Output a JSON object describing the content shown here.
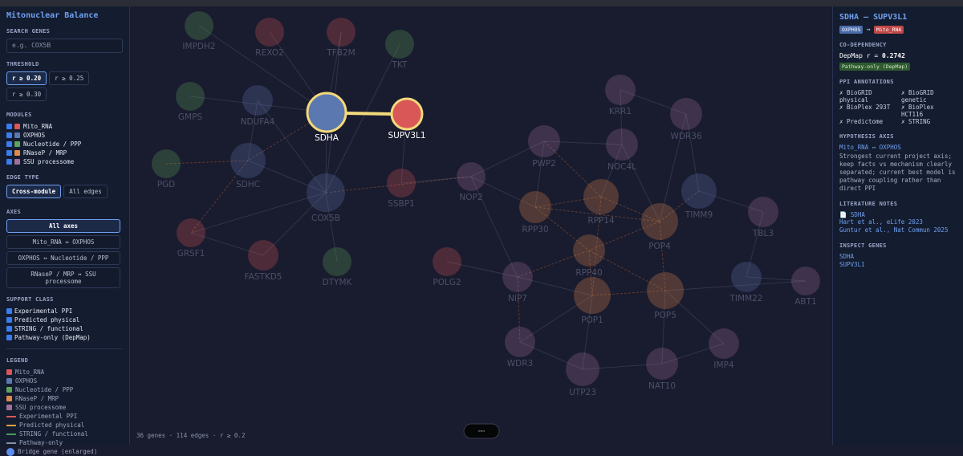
{
  "sidebar": {
    "title": "Mitonuclear Balance",
    "search_label": "SEARCH GENES",
    "search_placeholder": "e.g. COX5B",
    "threshold_label": "THRESHOLD",
    "thresholds": [
      "r ≥ 0.20",
      "r ≥ 0.25",
      "r ≥ 0.30"
    ],
    "modules_label": "MODULES",
    "modules": [
      {
        "name": "Mito_RNA",
        "color": "#d95757"
      },
      {
        "name": "OXPHOS",
        "color": "#5c78b0"
      },
      {
        "name": "Nucleotide / PPP",
        "color": "#5aa55a"
      },
      {
        "name": "RNaseP / MRP",
        "color": "#e08a4a"
      },
      {
        "name": "SSU processome",
        "color": "#a0709c"
      }
    ],
    "edge_type_label": "EDGE TYPE",
    "edge_types": [
      "Cross-module",
      "All edges"
    ],
    "axes_label": "AXES",
    "axes": [
      "All axes",
      "Mito_RNA ↔ OXPHOS",
      "OXPHOS ↔ Nucleotide / PPP",
      "RNaseP / MRP ↔ SSU processome"
    ],
    "support_label": "SUPPORT CLASS",
    "support": [
      "Experimental PPI",
      "Predicted physical",
      "STRING / functional",
      "Pathway-only (DepMap)"
    ],
    "legend_label": "LEGEND",
    "legend": [
      "Mito_RNA",
      "OXPHOS",
      "Nucleotide / PPP",
      "RNaseP / MRP",
      "SSU processome",
      "Experimental PPI",
      "Predicted physical",
      "STRING / functional",
      "Pathway-only",
      "Bridge gene (enlarged)"
    ]
  },
  "graph": {
    "nodes": [
      {
        "label": "IMPDH2"
      },
      {
        "label": "REXO2"
      },
      {
        "label": "TFB2M"
      },
      {
        "label": "TKT"
      },
      {
        "label": "GMPS"
      },
      {
        "label": "NDUFA4"
      },
      {
        "label": "SDHA"
      },
      {
        "label": "SUPV3L1"
      },
      {
        "label": "KRR1"
      },
      {
        "label": "WDR36"
      },
      {
        "label": "PWP2"
      },
      {
        "label": "NOC4L"
      },
      {
        "label": "PGD"
      },
      {
        "label": "SDHC"
      },
      {
        "label": "COX5B"
      },
      {
        "label": "SSBP1"
      },
      {
        "label": "NOP2"
      },
      {
        "label": "RPP14"
      },
      {
        "label": "TIMM9"
      },
      {
        "label": "TBL3"
      },
      {
        "label": "RPP30"
      },
      {
        "label": "POP4"
      },
      {
        "label": "GRSF1"
      },
      {
        "label": "FASTKD5"
      },
      {
        "label": "DTYMK"
      },
      {
        "label": "POLG2"
      },
      {
        "label": "RPP40"
      },
      {
        "label": "NIP7"
      },
      {
        "label": "TIMM22"
      },
      {
        "label": "ABT1"
      },
      {
        "label": "POP1"
      },
      {
        "label": "POP5"
      },
      {
        "label": "WDR3"
      },
      {
        "label": "UTP23"
      },
      {
        "label": "NAT10"
      },
      {
        "label": "IMP4"
      }
    ],
    "footer": "36 genes · 114 edges · r ≥ 0.2"
  },
  "detail": {
    "title": "SDHA — SUPV3L1",
    "tag_a": "OXPHOS",
    "tag_sep": "↔",
    "tag_b": "Mito_RNA",
    "codep_label": "CO-DEPENDENCY",
    "depmap_label": "DepMap r =",
    "depmap_r": 0.2742,
    "badge": "Pathway-only (DepMap)",
    "ppi_label": "PPI ANNOTATIONS",
    "ppi": [
      "✗ BioGRID physical",
      "✗ BioGRID genetic",
      "✗ BioPlex 293T",
      "✗ BioPlex HCT116",
      "✗ Predictome",
      "✗ STRING"
    ],
    "hyp_label": "HYPOTHESIS AXIS",
    "hyp_axis": "Mito_RNA ↔ OXPHOS",
    "hyp_text": "Strongest current project axis; keep facts vs mechanism clearly separated; current best model is pathway coupling rather than direct PPI",
    "lit_label": "LITERATURE NOTES",
    "lit_link": "📄 SDHA",
    "lit": [
      "Hart et al., eLife 2023",
      "Guntur et al., Nat Commun 2025"
    ],
    "inspect_label": "INSPECT GENES",
    "inspect": [
      "SDHA",
      "SUPV3L1"
    ]
  }
}
